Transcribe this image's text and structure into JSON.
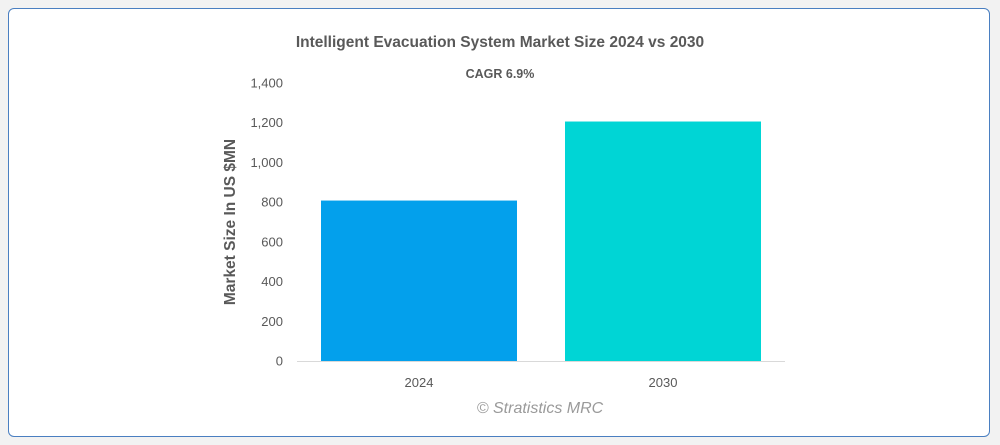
{
  "chart_data": {
    "type": "bar",
    "title": "Intelligent Evacuation System Market Size 2024 vs 2030",
    "subtitle": "CAGR 6.9%",
    "xlabel": "",
    "ylabel": "Market Size In US $MN",
    "categories": [
      "2024",
      "2030"
    ],
    "values": [
      808,
      1206
    ],
    "ylim": [
      0,
      1400
    ],
    "yticks": [
      0,
      200,
      400,
      600,
      800,
      1000,
      1200,
      1400
    ],
    "ytick_labels": [
      "0",
      "200",
      "400",
      "600",
      "800",
      "1,000",
      "1,200",
      "1,400"
    ],
    "bar_colors": [
      "#03a0ec",
      "#00d5d5"
    ],
    "grid": false,
    "legend": "none"
  },
  "watermark": "© Stratistics MRC"
}
